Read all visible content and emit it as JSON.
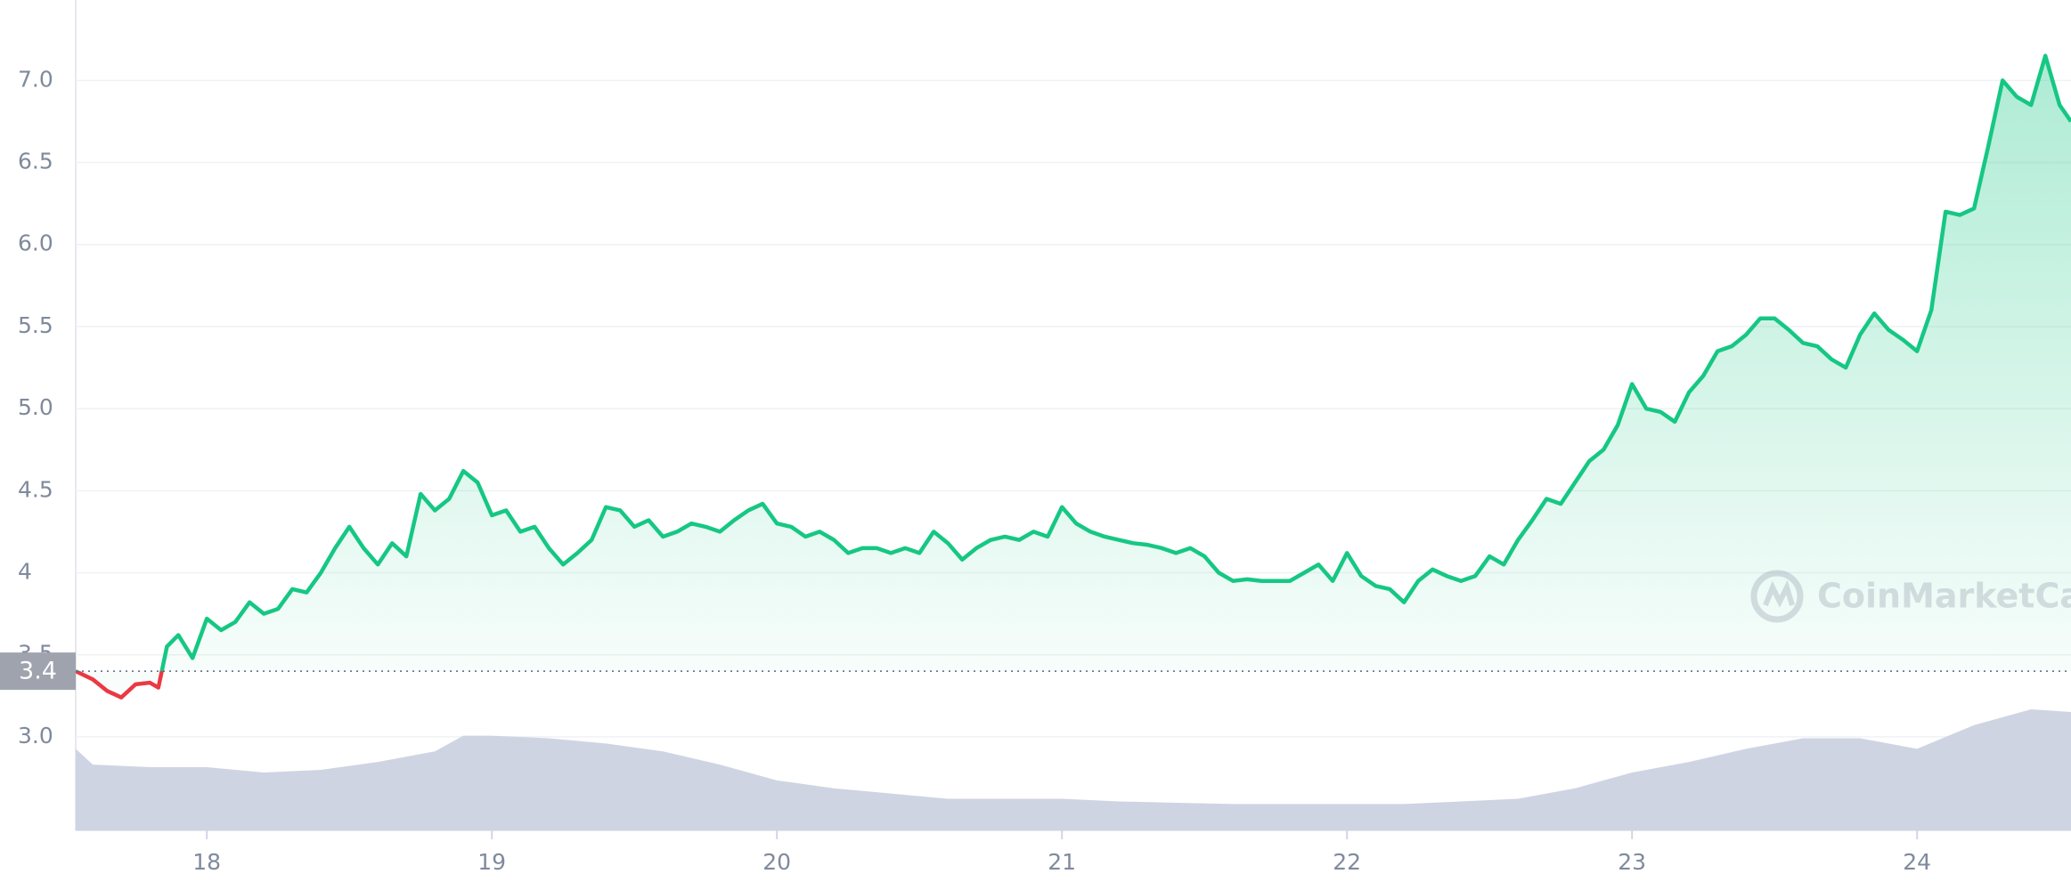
{
  "chart_data": {
    "type": "line",
    "watermark": "CoinMarketCap",
    "x": [
      17.54,
      17.6,
      17.65,
      17.7,
      17.75,
      17.8,
      17.83,
      17.86,
      17.9,
      17.95,
      18.0,
      18.05,
      18.1,
      18.15,
      18.2,
      18.25,
      18.3,
      18.35,
      18.4,
      18.45,
      18.5,
      18.55,
      18.6,
      18.65,
      18.7,
      18.75,
      18.8,
      18.85,
      18.9,
      18.95,
      19.0,
      19.05,
      19.1,
      19.15,
      19.2,
      19.25,
      19.3,
      19.35,
      19.4,
      19.45,
      19.5,
      19.55,
      19.6,
      19.65,
      19.7,
      19.75,
      19.8,
      19.85,
      19.9,
      19.95,
      20.0,
      20.05,
      20.1,
      20.15,
      20.2,
      20.25,
      20.3,
      20.35,
      20.4,
      20.45,
      20.5,
      20.55,
      20.6,
      20.65,
      20.7,
      20.75,
      20.8,
      20.85,
      20.9,
      20.95,
      21.0,
      21.05,
      21.1,
      21.15,
      21.2,
      21.25,
      21.3,
      21.35,
      21.4,
      21.45,
      21.5,
      21.55,
      21.6,
      21.65,
      21.7,
      21.75,
      21.8,
      21.85,
      21.9,
      21.95,
      22.0,
      22.05,
      22.1,
      22.15,
      22.2,
      22.25,
      22.3,
      22.35,
      22.4,
      22.45,
      22.5,
      22.55,
      22.6,
      22.65,
      22.7,
      22.75,
      22.8,
      22.85,
      22.9,
      22.95,
      23.0,
      23.05,
      23.1,
      23.15,
      23.2,
      23.25,
      23.3,
      23.35,
      23.4,
      23.45,
      23.5,
      23.55,
      23.6,
      23.65,
      23.7,
      23.75,
      23.8,
      23.85,
      23.9,
      23.95,
      24.0,
      24.05,
      24.1,
      24.15,
      24.2,
      24.25,
      24.3,
      24.35,
      24.4,
      24.45,
      24.5,
      24.54
    ],
    "series": [
      {
        "color": "#16c784",
        "down_color": "#ea3943",
        "values": [
          3.4,
          3.35,
          3.28,
          3.24,
          3.32,
          3.33,
          3.3,
          3.55,
          3.62,
          3.48,
          3.72,
          3.65,
          3.7,
          3.82,
          3.75,
          3.78,
          3.9,
          3.88,
          4.0,
          4.15,
          4.28,
          4.15,
          4.05,
          4.18,
          4.1,
          4.48,
          4.38,
          4.45,
          4.62,
          4.55,
          4.35,
          4.38,
          4.25,
          4.28,
          4.15,
          4.05,
          4.12,
          4.2,
          4.4,
          4.38,
          4.28,
          4.32,
          4.22,
          4.25,
          4.3,
          4.28,
          4.25,
          4.32,
          4.38,
          4.42,
          4.3,
          4.28,
          4.22,
          4.25,
          4.2,
          4.12,
          4.15,
          4.15,
          4.12,
          4.15,
          4.12,
          4.25,
          4.18,
          4.08,
          4.15,
          4.2,
          4.22,
          4.2,
          4.25,
          4.22,
          4.4,
          4.3,
          4.25,
          4.22,
          4.2,
          4.18,
          4.17,
          4.15,
          4.12,
          4.15,
          4.1,
          4.0,
          3.95,
          3.96,
          3.95,
          3.95,
          3.95,
          4.0,
          4.05,
          3.95,
          4.12,
          3.98,
          3.92,
          3.9,
          3.82,
          3.95,
          4.02,
          3.98,
          3.95,
          3.98,
          4.1,
          4.05,
          4.2,
          4.32,
          4.45,
          4.42,
          4.55,
          4.68,
          4.75,
          4.9,
          5.15,
          5.0,
          4.98,
          4.92,
          5.1,
          5.2,
          5.35,
          5.38,
          5.45,
          5.55,
          5.55,
          5.48,
          5.4,
          5.38,
          5.3,
          5.25,
          5.45,
          5.58,
          5.48,
          5.42,
          5.35,
          5.6,
          6.2,
          6.18,
          6.22,
          6.6,
          7.0,
          6.9,
          6.85,
          7.15,
          6.85,
          6.75
        ]
      }
    ],
    "baseline": 3.4,
    "volume": {
      "color": "#cfd4e3",
      "x": [
        17.54,
        17.6,
        17.8,
        18.0,
        18.2,
        18.4,
        18.6,
        18.8,
        18.9,
        19.0,
        19.2,
        19.4,
        19.6,
        19.8,
        20.0,
        20.2,
        20.4,
        20.6,
        20.8,
        21.0,
        21.2,
        21.4,
        21.6,
        21.8,
        22.0,
        22.2,
        22.4,
        22.6,
        22.8,
        23.0,
        23.2,
        23.4,
        23.6,
        23.8,
        24.0,
        24.2,
        24.4,
        24.54
      ],
      "values": [
        62,
        50,
        48,
        48,
        44,
        46,
        52,
        60,
        72,
        72,
        70,
        66,
        60,
        50,
        38,
        32,
        28,
        24,
        24,
        24,
        22,
        21,
        20,
        20,
        20,
        20,
        22,
        24,
        32,
        44,
        52,
        62,
        70,
        70,
        62,
        80,
        92,
        90
      ]
    },
    "xlim": [
      17.54,
      24.54
    ],
    "xticks": [
      18,
      19,
      20,
      21,
      22,
      23,
      24
    ],
    "ylim": [
      2.43,
      7.49
    ],
    "yticks": [
      {
        "value": 3,
        "label": "3.0"
      },
      3.5,
      4,
      4.5,
      {
        "value": 5,
        "label": "5.0"
      },
      5.5,
      {
        "value": 6,
        "label": "6.0"
      },
      6.5,
      {
        "value": 7,
        "label": "7.0"
      }
    ],
    "grid": true
  }
}
